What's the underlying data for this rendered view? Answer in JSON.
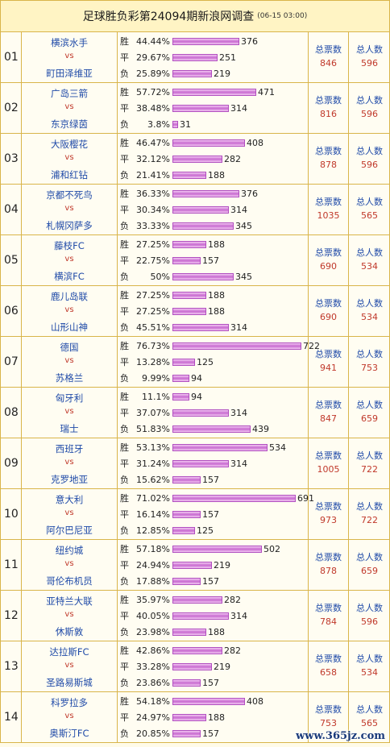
{
  "header": {
    "title": "足球胜负彩第24094期新浪网调查",
    "timestamp": "(06-15 03:00)"
  },
  "labels": {
    "win": "胜",
    "draw": "平",
    "lose": "负",
    "vs": "vs",
    "votes_title": "总票数",
    "people_title": "总人数"
  },
  "matches": [
    {
      "num": "01",
      "home": "横滨水手",
      "away": "町田泽维亚",
      "win_pct": "44.44%",
      "win_count": "376",
      "draw_pct": "29.67%",
      "draw_count": "251",
      "lose_pct": "25.89%",
      "lose_count": "219",
      "total_votes": "846",
      "total_people": "596"
    },
    {
      "num": "02",
      "home": "广岛三箭",
      "away": "东京绿茵",
      "win_pct": "57.72%",
      "win_count": "471",
      "draw_pct": "38.48%",
      "draw_count": "314",
      "lose_pct": "3.8%",
      "lose_count": "31",
      "total_votes": "816",
      "total_people": "596"
    },
    {
      "num": "03",
      "home": "大阪樱花",
      "away": "浦和红钻",
      "win_pct": "46.47%",
      "win_count": "408",
      "draw_pct": "32.12%",
      "draw_count": "282",
      "lose_pct": "21.41%",
      "lose_count": "188",
      "total_votes": "878",
      "total_people": "596"
    },
    {
      "num": "04",
      "home": "京都不死鸟",
      "away": "札幌冈萨多",
      "win_pct": "36.33%",
      "win_count": "376",
      "draw_pct": "30.34%",
      "draw_count": "314",
      "lose_pct": "33.33%",
      "lose_count": "345",
      "total_votes": "1035",
      "total_people": "565"
    },
    {
      "num": "05",
      "home": "藤枝FC",
      "away": "横滨FC",
      "win_pct": "27.25%",
      "win_count": "188",
      "draw_pct": "22.75%",
      "draw_count": "157",
      "lose_pct": "50%",
      "lose_count": "345",
      "total_votes": "690",
      "total_people": "534"
    },
    {
      "num": "06",
      "home": "鹿儿岛联",
      "away": "山形山神",
      "win_pct": "27.25%",
      "win_count": "188",
      "draw_pct": "27.25%",
      "draw_count": "188",
      "lose_pct": "45.51%",
      "lose_count": "314",
      "total_votes": "690",
      "total_people": "534"
    },
    {
      "num": "07",
      "home": "德国",
      "away": "苏格兰",
      "win_pct": "76.73%",
      "win_count": "722",
      "draw_pct": "13.28%",
      "draw_count": "125",
      "lose_pct": "9.99%",
      "lose_count": "94",
      "total_votes": "941",
      "total_people": "753"
    },
    {
      "num": "08",
      "home": "匈牙利",
      "away": "瑞士",
      "win_pct": "11.1%",
      "win_count": "94",
      "draw_pct": "37.07%",
      "draw_count": "314",
      "lose_pct": "51.83%",
      "lose_count": "439",
      "total_votes": "847",
      "total_people": "659"
    },
    {
      "num": "09",
      "home": "西班牙",
      "away": "克罗地亚",
      "win_pct": "53.13%",
      "win_count": "534",
      "draw_pct": "31.24%",
      "draw_count": "314",
      "lose_pct": "15.62%",
      "lose_count": "157",
      "total_votes": "1005",
      "total_people": "722"
    },
    {
      "num": "10",
      "home": "意大利",
      "away": "阿尔巴尼亚",
      "win_pct": "71.02%",
      "win_count": "691",
      "draw_pct": "16.14%",
      "draw_count": "157",
      "lose_pct": "12.85%",
      "lose_count": "125",
      "total_votes": "973",
      "total_people": "722"
    },
    {
      "num": "11",
      "home": "纽约城",
      "away": "哥伦布机员",
      "win_pct": "57.18%",
      "win_count": "502",
      "draw_pct": "24.94%",
      "draw_count": "219",
      "lose_pct": "17.88%",
      "lose_count": "157",
      "total_votes": "878",
      "total_people": "659"
    },
    {
      "num": "12",
      "home": "亚特兰大联",
      "away": "休斯敦",
      "win_pct": "35.97%",
      "win_count": "282",
      "draw_pct": "40.05%",
      "draw_count": "314",
      "lose_pct": "23.98%",
      "lose_count": "188",
      "total_votes": "784",
      "total_people": "596"
    },
    {
      "num": "13",
      "home": "达拉斯FC",
      "away": "圣路易斯城",
      "win_pct": "42.86%",
      "win_count": "282",
      "draw_pct": "33.28%",
      "draw_count": "219",
      "lose_pct": "23.86%",
      "lose_count": "157",
      "total_votes": "658",
      "total_people": "534"
    },
    {
      "num": "14",
      "home": "科罗拉多",
      "away": "奥斯汀FC",
      "win_pct": "54.18%",
      "win_count": "408",
      "draw_pct": "24.97%",
      "draw_count": "188",
      "lose_pct": "20.85%",
      "lose_count": "157",
      "total_votes": "753",
      "total_people": "565"
    }
  ],
  "watermark": "www.365jz.com",
  "colors": {
    "team": "#1f4aa8",
    "stat_value": "#c0392b",
    "border": "#d9b54a",
    "bar": "#c86ad0"
  }
}
